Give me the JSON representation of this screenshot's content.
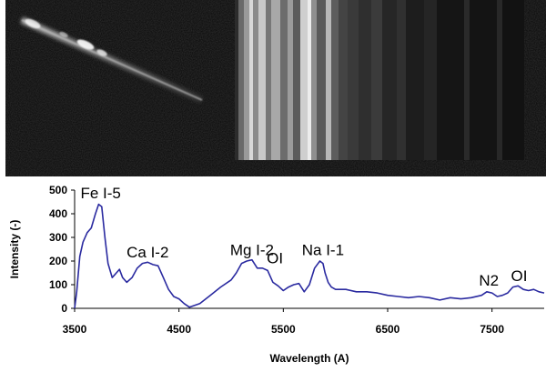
{
  "colors": {
    "spectrum_line": "#2a2aa0",
    "photo_background": "#060606"
  },
  "chart_data": {
    "type": "line",
    "xlabel": "Wavelength (A)",
    "ylabel": "Intensity (-)",
    "xlim": [
      3500,
      8000
    ],
    "ylim": [
      0,
      500
    ],
    "xticks": [
      3500,
      4500,
      5500,
      6500,
      7500
    ],
    "yticks": [
      0,
      100,
      200,
      300,
      400,
      500
    ],
    "grid": false,
    "legend": "none",
    "series": [
      {
        "x": [
          3500,
          3520,
          3550,
          3580,
          3620,
          3660,
          3700,
          3730,
          3760,
          3790,
          3820,
          3860,
          3900,
          3930,
          3960,
          4000,
          4050,
          4100,
          4150,
          4200,
          4250,
          4300,
          4350,
          4400,
          4450,
          4500,
          4550,
          4600,
          4700,
          4800,
          4900,
          5000,
          5050,
          5100,
          5150,
          5200,
          5250,
          5300,
          5350,
          5400,
          5450,
          5500,
          5550,
          5600,
          5650,
          5700,
          5750,
          5800,
          5850,
          5880,
          5900,
          5930,
          5960,
          6000,
          6100,
          6200,
          6300,
          6400,
          6500,
          6600,
          6700,
          6800,
          6900,
          7000,
          7100,
          7200,
          7300,
          7400,
          7450,
          7500,
          7550,
          7600,
          7650,
          7700,
          7750,
          7800,
          7850,
          7900,
          7950,
          8000
        ],
        "y": [
          0,
          70,
          220,
          280,
          320,
          340,
          400,
          440,
          430,
          300,
          190,
          130,
          150,
          165,
          130,
          110,
          130,
          170,
          190,
          195,
          185,
          180,
          130,
          80,
          50,
          40,
          20,
          5,
          20,
          55,
          90,
          120,
          150,
          190,
          200,
          205,
          170,
          170,
          160,
          110,
          95,
          75,
          90,
          100,
          105,
          70,
          100,
          170,
          200,
          190,
          150,
          110,
          90,
          80,
          80,
          70,
          70,
          65,
          55,
          50,
          45,
          50,
          45,
          35,
          45,
          40,
          45,
          55,
          70,
          65,
          50,
          55,
          65,
          90,
          95,
          80,
          75,
          80,
          70,
          65
        ]
      }
    ],
    "annotations": [
      {
        "text": "Fe I-5",
        "x": 3750,
        "y": 450
      },
      {
        "text": "Ca I-2",
        "x": 4200,
        "y": 200
      },
      {
        "text": "Mg I-2",
        "x": 5200,
        "y": 210
      },
      {
        "text": "OI",
        "x": 5420,
        "y": 175
      },
      {
        "text": "Na I-1",
        "x": 5880,
        "y": 210
      },
      {
        "text": "N2",
        "x": 7470,
        "y": 80
      },
      {
        "text": "OI",
        "x": 7760,
        "y": 100
      }
    ]
  }
}
